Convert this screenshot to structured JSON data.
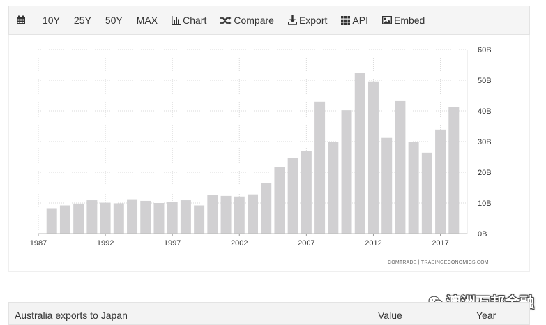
{
  "toolbar": {
    "calendar_icon": "calendar-icon",
    "items": [
      {
        "label": "10Y"
      },
      {
        "label": "25Y"
      },
      {
        "label": "50Y"
      },
      {
        "label": "MAX"
      }
    ],
    "chart_label": "Chart",
    "compare_label": "Compare",
    "export_label": "Export",
    "api_label": "API",
    "embed_label": "Embed"
  },
  "source_text": "COMTRADE | TRADINGECONOMICS.COM",
  "table": {
    "title": "Australia exports to Japan",
    "value_header": "Value",
    "year_header": "Year"
  },
  "watermark": "澳洲万邦金融",
  "chart_data": {
    "type": "bar",
    "x": [
      1988,
      1989,
      1990,
      1991,
      1992,
      1993,
      1994,
      1995,
      1996,
      1997,
      1998,
      1999,
      2000,
      2001,
      2002,
      2003,
      2004,
      2005,
      2006,
      2007,
      2008,
      2009,
      2010,
      2011,
      2012,
      2013,
      2014,
      2015,
      2016,
      2017,
      2018
    ],
    "values": [
      8.3,
      9.2,
      9.8,
      10.9,
      10.1,
      9.9,
      11.0,
      10.7,
      10.0,
      10.3,
      10.9,
      9.2,
      12.6,
      12.3,
      12.1,
      12.8,
      16.4,
      21.8,
      24.6,
      26.9,
      43.0,
      30.0,
      40.2,
      52.3,
      49.6,
      31.2,
      43.2,
      29.8,
      26.4,
      33.9,
      41.3
    ],
    "xticks": [
      1987,
      1992,
      1997,
      2002,
      2007,
      2012,
      2017
    ],
    "yticks": [
      "0B",
      "10B",
      "20B",
      "30B",
      "40B",
      "50B",
      "60B"
    ],
    "ylim": [
      0,
      60
    ],
    "xlim": [
      1987,
      2019
    ],
    "bar_color": "#d1d0d2",
    "grid": true,
    "title": "",
    "xlabel": "",
    "ylabel": ""
  }
}
